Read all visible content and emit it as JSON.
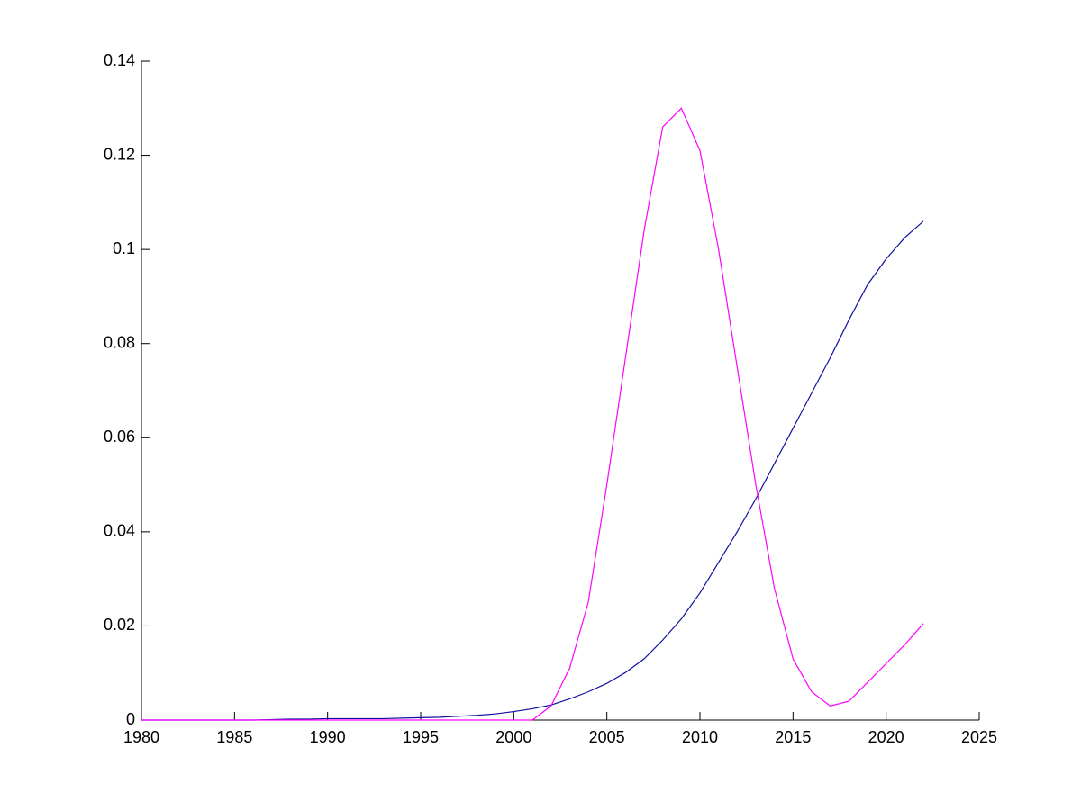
{
  "chart_data": {
    "type": "line",
    "x": [
      1980,
      1981,
      1982,
      1983,
      1984,
      1985,
      1986,
      1987,
      1988,
      1989,
      1990,
      1991,
      1992,
      1993,
      1994,
      1995,
      1996,
      1997,
      1998,
      1999,
      2000,
      2001,
      2002,
      2003,
      2004,
      2005,
      2006,
      2007,
      2008,
      2009,
      2010,
      2011,
      2012,
      2013,
      2014,
      2015,
      2016,
      2017,
      2018,
      2019,
      2020,
      2021,
      2022
    ],
    "series": [
      {
        "color": "#1010a0",
        "values": [
          0,
          0,
          0,
          0,
          0,
          0,
          0,
          0.0001,
          0.0002,
          0.0002,
          0.0003,
          0.0003,
          0.0003,
          0.0003,
          0.0004,
          0.0005,
          0.0006,
          0.0008,
          0.001,
          0.0013,
          0.0018,
          0.0024,
          0.0032,
          0.0045,
          0.006,
          0.0078,
          0.0101,
          0.013,
          0.017,
          0.0215,
          0.027,
          0.0335,
          0.04,
          0.047,
          0.0545,
          0.062,
          0.0695,
          0.077,
          0.085,
          0.0925,
          0.098,
          0.1025,
          0.106
        ]
      },
      {
        "color": "#ff00ff",
        "values": [
          0,
          0,
          0,
          0,
          0,
          0,
          0,
          0,
          0,
          0,
          0,
          0,
          0,
          0,
          0,
          0,
          0,
          0,
          0,
          0,
          0,
          0,
          0.003,
          0.011,
          0.025,
          0.05,
          0.077,
          0.104,
          0.126,
          0.13,
          0.121,
          0.1,
          0.075,
          0.05,
          0.028,
          0.013,
          0.006,
          0.003,
          0.004,
          0.008,
          0.012,
          0.016,
          0.0205
        ]
      }
    ],
    "xlim": [
      1980,
      2025
    ],
    "xticks": [
      1980,
      1985,
      1990,
      1995,
      2000,
      2005,
      2010,
      2015,
      2020,
      2025
    ],
    "ylim": [
      0,
      0.14
    ],
    "yticks": [
      0,
      0.02,
      0.04,
      0.06,
      0.08,
      0.1,
      0.12,
      0.14
    ]
  }
}
